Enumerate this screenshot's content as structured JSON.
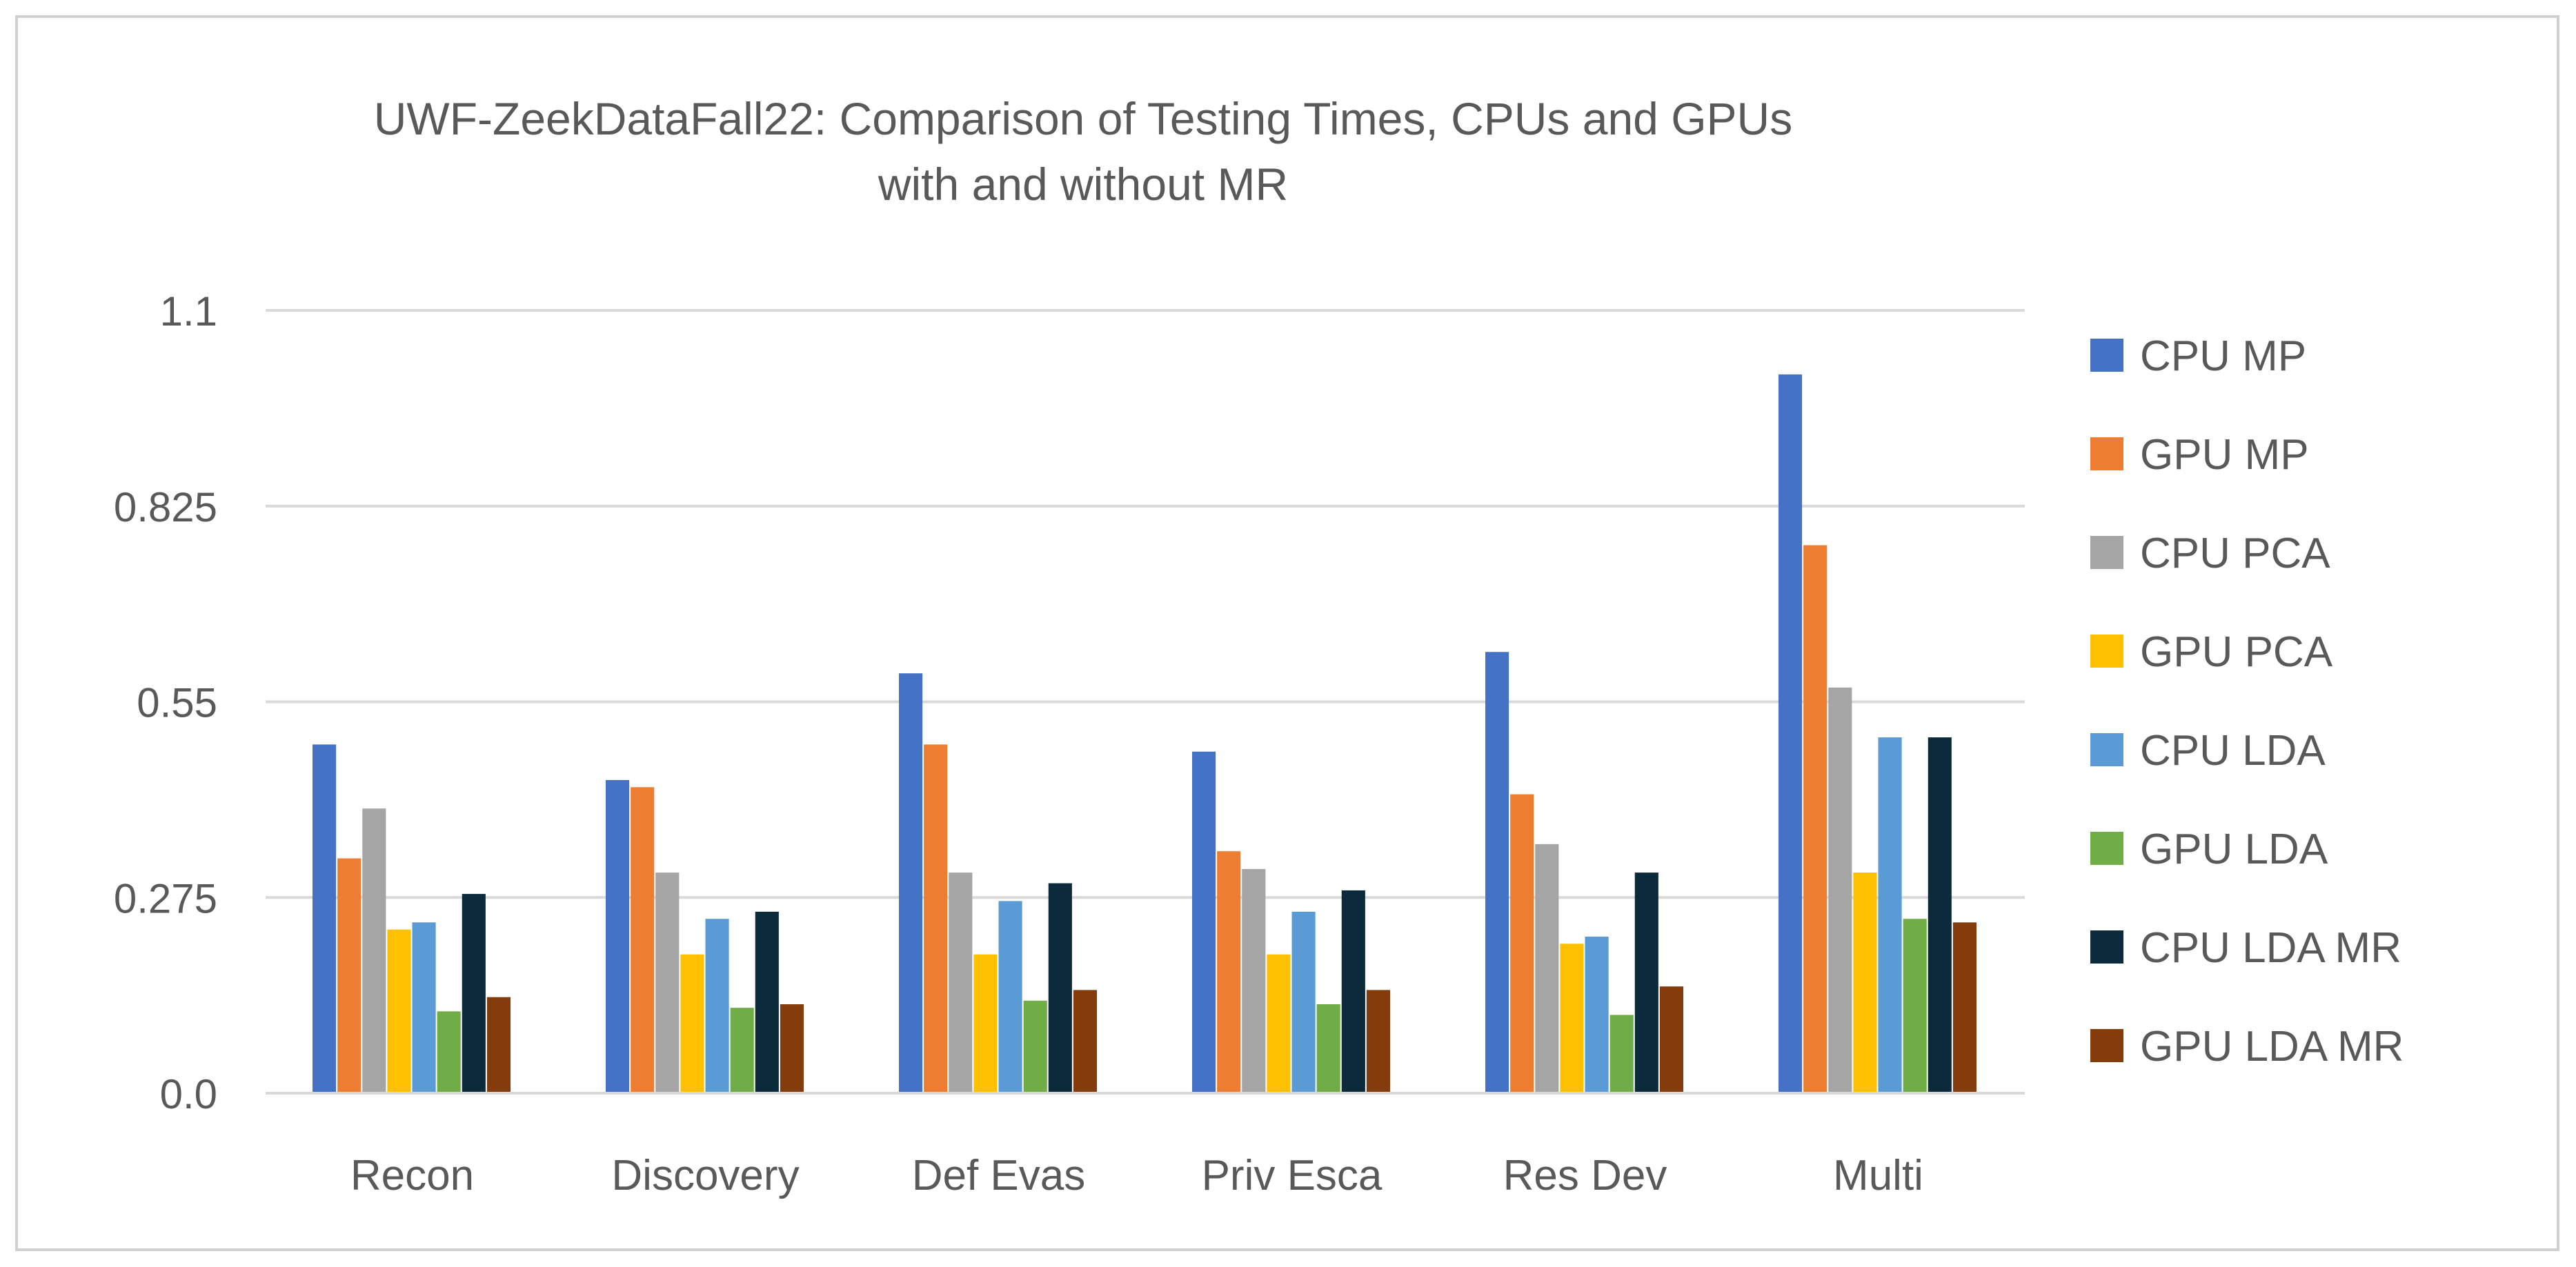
{
  "chart_data": {
    "type": "bar",
    "title_lines": [
      "UWF-ZeekDataFall22: Comparison of Testing Times, CPUs and GPUs",
      "with and without MR"
    ],
    "xlabel": "",
    "ylabel": "",
    "ylim": [
      0,
      1.1
    ],
    "y_ticks": [
      "0.0",
      "0.275",
      "0.55",
      "0.825",
      "1.1"
    ],
    "y_tick_values": [
      0,
      0.275,
      0.55,
      0.825,
      1.1
    ],
    "grid": true,
    "legend_position": "right",
    "categories": [
      "Recon",
      "Discovery",
      "Def Evas",
      "Priv Esca",
      "Res Dev",
      "Multi"
    ],
    "series": [
      {
        "name": "CPU MP",
        "color": "#4472C4",
        "values": [
          0.49,
          0.44,
          0.59,
          0.48,
          0.62,
          1.01
        ]
      },
      {
        "name": "GPU MP",
        "color": "#ED7D31",
        "values": [
          0.33,
          0.43,
          0.49,
          0.34,
          0.42,
          0.77
        ]
      },
      {
        "name": "CPU PCA",
        "color": "#A5A5A5",
        "values": [
          0.4,
          0.31,
          0.31,
          0.315,
          0.35,
          0.57
        ]
      },
      {
        "name": "GPU PCA",
        "color": "#FFC000",
        "values": [
          0.23,
          0.195,
          0.195,
          0.195,
          0.21,
          0.31
        ]
      },
      {
        "name": "CPU LDA",
        "color": "#5B9BD5",
        "values": [
          0.24,
          0.245,
          0.27,
          0.255,
          0.22,
          0.5
        ]
      },
      {
        "name": "GPU LDA",
        "color": "#70AD47",
        "values": [
          0.115,
          0.12,
          0.13,
          0.125,
          0.11,
          0.245
        ]
      },
      {
        "name": "CPU LDA MR",
        "color": "#0B2A3C",
        "values": [
          0.28,
          0.255,
          0.295,
          0.285,
          0.31,
          0.5
        ]
      },
      {
        "name": "GPU LDA MR",
        "color": "#843C0C",
        "values": [
          0.135,
          0.125,
          0.145,
          0.145,
          0.15,
          0.24
        ]
      }
    ]
  }
}
